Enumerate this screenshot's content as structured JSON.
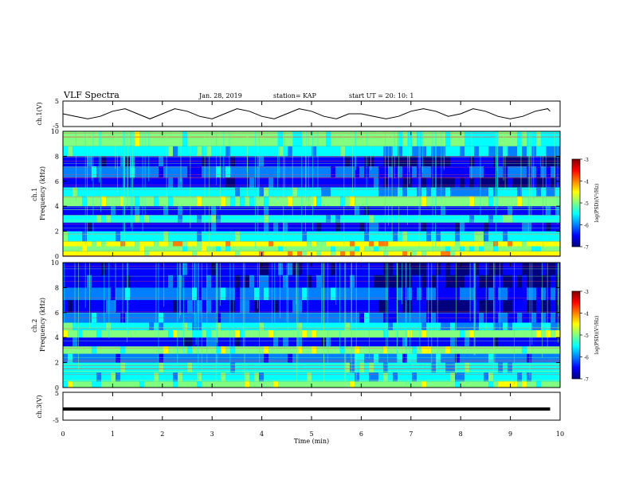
{
  "header": {
    "title": "VLF Spectra",
    "date": "Jan. 28, 2019",
    "station": "station= KAP",
    "start": "start UT =  20: 10: 1"
  },
  "colors": {
    "waveform": "#000000",
    "colormap": [
      "#00007f",
      "#0000ff",
      "#0080ff",
      "#00ffff",
      "#80ff80",
      "#ffff00",
      "#ff8000",
      "#ff0000",
      "#7f0000"
    ]
  },
  "chart_data": [
    {
      "type": "line",
      "panel": "ch1-waveform",
      "ylabel": "ch.1(V)",
      "ylim": [
        -5,
        5
      ],
      "yticks": [
        "5",
        "-5"
      ],
      "xlim": [
        0,
        10
      ],
      "series": [
        {
          "x": [
            0,
            0.25,
            0.5,
            0.75,
            1,
            1.25,
            1.5,
            1.75,
            2,
            2.25,
            2.5,
            2.75,
            3,
            3.25,
            3.5,
            3.75,
            4,
            4.25,
            4.5,
            4.75,
            5,
            5.25,
            5.5,
            5.75,
            6,
            6.25,
            6.5,
            6.75,
            7,
            7.25,
            7.5,
            7.75,
            8,
            8.25,
            8.5,
            8.75,
            9,
            9.25,
            9.5,
            9.75,
            9.8
          ],
          "values": [
            0,
            -1,
            -2,
            -1,
            1,
            2,
            0,
            -2,
            0,
            2,
            1,
            -1,
            -2,
            0,
            2,
            1,
            -1,
            -2,
            0,
            2,
            1,
            -1,
            -2,
            0,
            0,
            -1,
            -2,
            -1,
            1,
            2,
            1,
            -1,
            0,
            2,
            1,
            -1,
            -2,
            -1,
            1,
            2,
            1
          ]
        }
      ]
    },
    {
      "type": "heatmap",
      "panel": "ch1-spectrogram",
      "ylabel": "ch.1\nFrequency (kHz)",
      "ylim": [
        0,
        10
      ],
      "yticks": [
        "0",
        "2",
        "4",
        "6",
        "8",
        "10"
      ],
      "xlim": [
        0,
        9.8
      ],
      "colorbar": {
        "label": "log(PSD)(V²/Hz)",
        "range": [
          -7,
          -3
        ],
        "ticks": [
          "-3",
          "-4",
          "-5",
          "-6",
          "-7"
        ]
      }
    },
    {
      "type": "heatmap",
      "panel": "ch2-spectrogram",
      "ylabel": "ch.2\nFrequency (kHz)",
      "ylim": [
        0,
        10
      ],
      "yticks": [
        "0",
        "2",
        "4",
        "6",
        "8",
        "10"
      ],
      "xlim": [
        0,
        9.8
      ],
      "colorbar": {
        "label": "log(PSD)(V²/Hz)",
        "range": [
          -7,
          -3
        ],
        "ticks": [
          "-3",
          "-4",
          "-5",
          "-6",
          "-7"
        ]
      }
    },
    {
      "type": "line",
      "panel": "ch3-waveform",
      "ylabel": "ch.3(V)",
      "ylim": [
        -5,
        5
      ],
      "yticks": [
        "5",
        "-5"
      ],
      "xlabel": "Time (min)",
      "xlim": [
        0,
        10
      ],
      "xticks": [
        "0",
        "1",
        "2",
        "3",
        "4",
        "5",
        "6",
        "7",
        "8",
        "9",
        "10"
      ],
      "series": [
        {
          "x": [
            0,
            9.8
          ],
          "values": [
            -1,
            -1
          ]
        }
      ]
    }
  ]
}
